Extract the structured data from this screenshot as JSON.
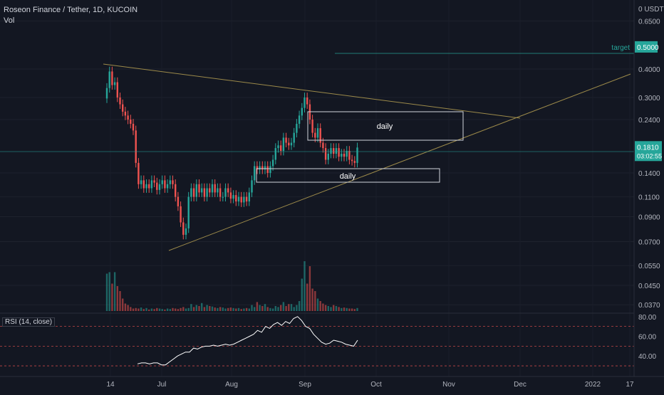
{
  "header": {
    "title": "Roseon Finance / Tether, 1D, KUCOIN",
    "vol_label": "Vol"
  },
  "rsi_label": "RSI (14, close)",
  "price_axis": {
    "currency_label": "0 USDT",
    "tick_labels": [
      "0.6500",
      "0.4000",
      "0.3000",
      "0.2400",
      "0.1400",
      "0.1100",
      "0.0900",
      "0.0700",
      "0.0550",
      "0.0450",
      "0.0370"
    ],
    "tick_values": [
      0.65,
      0.4,
      0.3,
      0.24,
      0.14,
      0.11,
      0.09,
      0.07,
      0.055,
      0.045,
      0.037
    ]
  },
  "rsi_axis": {
    "tick_labels": [
      "80.00",
      "60.00",
      "40.00"
    ],
    "tick_values": [
      80,
      60,
      40
    ]
  },
  "time_axis": {
    "labels": [
      "14",
      "Jul",
      "Aug",
      "Sep",
      "Oct",
      "Nov",
      "Dec",
      "2022",
      "17"
    ]
  },
  "last_price": {
    "value": "0.1810",
    "countdown": "03:02:55",
    "color": "#26a69a"
  },
  "target": {
    "label": "target",
    "value": "0.5000",
    "color": "#26a69a"
  },
  "annotations": {
    "upper_box": "daily",
    "lower_box": "daily"
  },
  "colors": {
    "background": "#131722",
    "up": "#26a69a",
    "down": "#ef5350",
    "trendline": "#9c8a4a",
    "rsi_line": "#ffffff",
    "rsi_band": "#ef5350"
  },
  "chart_data": [
    {
      "type": "candlestick",
      "scale": "log",
      "title": "Roseon Finance / Tether, 1D, KUCOIN",
      "y_unit": "USDT",
      "ylim": [
        0.034,
        0.78
      ],
      "closes": [
        0.33,
        0.39,
        0.34,
        0.35,
        0.3,
        0.28,
        0.26,
        0.25,
        0.24,
        0.23,
        0.215,
        0.155,
        0.125,
        0.13,
        0.12,
        0.125,
        0.12,
        0.13,
        0.127,
        0.118,
        0.125,
        0.13,
        0.12,
        0.125,
        0.13,
        0.125,
        0.11,
        0.1,
        0.085,
        0.075,
        0.08,
        0.11,
        0.12,
        0.11,
        0.125,
        0.115,
        0.12,
        0.11,
        0.12,
        0.115,
        0.125,
        0.115,
        0.12,
        0.11,
        0.11,
        0.12,
        0.115,
        0.108,
        0.112,
        0.105,
        0.11,
        0.104,
        0.11,
        0.105,
        0.115,
        0.13,
        0.15,
        0.145,
        0.15,
        0.145,
        0.15,
        0.14,
        0.15,
        0.16,
        0.18,
        0.185,
        0.175,
        0.2,
        0.19,
        0.185,
        0.19,
        0.21,
        0.23,
        0.25,
        0.27,
        0.3,
        0.28,
        0.24,
        0.21,
        0.2,
        0.22,
        0.19,
        0.18,
        0.16,
        0.17,
        0.18,
        0.17,
        0.18,
        0.165,
        0.17,
        0.165,
        0.175,
        0.16,
        0.158,
        0.155,
        0.181
      ],
      "volume_relative": [
        0.75,
        0.78,
        0.55,
        0.78,
        0.5,
        0.4,
        0.25,
        0.15,
        0.12,
        0.08,
        0.05,
        0.06,
        0.05,
        0.07,
        0.04,
        0.06,
        0.03,
        0.05,
        0.04,
        0.06,
        0.05,
        0.04,
        0.03,
        0.05,
        0.04,
        0.06,
        0.05,
        0.04,
        0.06,
        0.08,
        0.05,
        0.06,
        0.14,
        0.08,
        0.12,
        0.1,
        0.16,
        0.08,
        0.12,
        0.1,
        0.09,
        0.07,
        0.06,
        0.08,
        0.07,
        0.05,
        0.06,
        0.07,
        0.06,
        0.05,
        0.06,
        0.04,
        0.05,
        0.06,
        0.05,
        0.12,
        0.08,
        0.18,
        0.12,
        0.1,
        0.14,
        0.08,
        0.06,
        0.05,
        0.1,
        0.08,
        0.12,
        0.18,
        0.1,
        0.14,
        0.14,
        0.08,
        0.12,
        0.2,
        0.65,
        1.0,
        0.55,
        0.9,
        0.45,
        0.4,
        0.25,
        0.2,
        0.15,
        0.12,
        0.1,
        0.08,
        0.12,
        0.1,
        0.08,
        0.06,
        0.07,
        0.06,
        0.05,
        0.05,
        0.04,
        0.06
      ],
      "target": 0.5,
      "last": 0.181
    },
    {
      "type": "line",
      "title": "RSI (14, close)",
      "ylim": [
        25,
        82
      ],
      "bands": [
        70,
        50,
        30
      ],
      "values": [
        32,
        33,
        33,
        32,
        33,
        33,
        31,
        31,
        34,
        37,
        40,
        42,
        44,
        44,
        48,
        47,
        49,
        50,
        50,
        51,
        50,
        51,
        52,
        51,
        52,
        54,
        56,
        58,
        60,
        62,
        66,
        64,
        70,
        68,
        72,
        74,
        71,
        75,
        73,
        78,
        80,
        76,
        70,
        68,
        62,
        58,
        54,
        52,
        53,
        56,
        55,
        54,
        52,
        51,
        50,
        56
      ]
    }
  ]
}
